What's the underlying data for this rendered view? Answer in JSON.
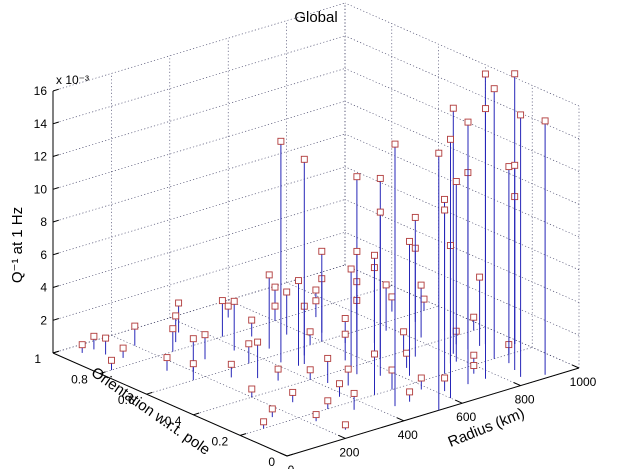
{
  "chart_data": {
    "type": "scatter",
    "subtype": "stem3",
    "title": "Global",
    "xlabel": "Radius (km)",
    "ylabel": "Orientation w.r.t. pole",
    "zlabel": "Q⁻¹ at 1 Hz",
    "z_multiplier": "x 10⁻³",
    "xlim": [
      0,
      1000
    ],
    "ylim": [
      0,
      1
    ],
    "zlim": [
      0,
      16
    ],
    "xticks": [
      "0",
      "200",
      "400",
      "600",
      "800",
      "1000"
    ],
    "yticks": [
      "0",
      "0.2",
      "0.4",
      "0.6",
      "0.8",
      "1"
    ],
    "zticks": [
      "2",
      "4",
      "6",
      "8",
      "10",
      "12",
      "14",
      "16"
    ],
    "grid": true,
    "stem_color": "#2626b8",
    "marker_color": "#b03a3a",
    "points": [
      [
        920,
        0.3,
        16.5
      ],
      [
        980,
        0.25,
        16.5
      ],
      [
        870,
        0.2,
        16.5
      ],
      [
        760,
        0.1,
        16.5
      ],
      [
        840,
        0.05,
        16.0
      ],
      [
        900,
        0.02,
        15.5
      ],
      [
        600,
        0.05,
        15.8
      ],
      [
        520,
        0.0,
        15.7
      ],
      [
        450,
        0.1,
        16.0
      ],
      [
        700,
        0.1,
        16.0
      ],
      [
        810,
        0.3,
        15.0
      ],
      [
        420,
        0.55,
        13.5
      ],
      [
        460,
        0.5,
        12.5
      ],
      [
        600,
        0.45,
        11.0
      ],
      [
        860,
        0.1,
        12.5
      ],
      [
        880,
        0.15,
        12.0
      ],
      [
        640,
        0.4,
        11.0
      ],
      [
        780,
        0.25,
        11.0
      ],
      [
        860,
        0.3,
        10.8
      ],
      [
        700,
        0.2,
        10.0
      ],
      [
        560,
        0.3,
        10.0
      ],
      [
        980,
        0.25,
        9.0
      ],
      [
        720,
        0.35,
        8.5
      ],
      [
        900,
        0.45,
        8.0
      ],
      [
        620,
        0.25,
        8.2
      ],
      [
        500,
        0.25,
        8.0
      ],
      [
        520,
        0.35,
        7.5
      ],
      [
        760,
        0.25,
        7.2
      ],
      [
        540,
        0.4,
        6.0
      ],
      [
        600,
        0.6,
        5.5
      ],
      [
        460,
        0.65,
        4.5
      ],
      [
        440,
        0.5,
        5.2
      ],
      [
        880,
        0.55,
        4.5
      ],
      [
        700,
        0.5,
        4.6
      ],
      [
        900,
        0.3,
        4.2
      ],
      [
        380,
        0.7,
        3.0
      ],
      [
        640,
        0.65,
        3.3
      ],
      [
        720,
        0.6,
        3.0
      ],
      [
        780,
        0.55,
        2.8
      ],
      [
        820,
        0.45,
        3.2
      ],
      [
        500,
        0.55,
        3.0
      ],
      [
        560,
        0.7,
        2.6
      ],
      [
        420,
        0.8,
        2.2
      ],
      [
        350,
        0.9,
        1.8
      ],
      [
        300,
        0.85,
        1.6
      ],
      [
        250,
        0.8,
        1.4
      ],
      [
        200,
        0.9,
        1.2
      ],
      [
        280,
        0.7,
        1.5
      ],
      [
        350,
        0.6,
        1.2
      ],
      [
        480,
        0.75,
        1.0
      ],
      [
        600,
        0.8,
        0.9
      ],
      [
        700,
        0.75,
        1.0
      ],
      [
        800,
        0.7,
        0.8
      ],
      [
        880,
        0.65,
        0.9
      ],
      [
        950,
        0.6,
        0.7
      ],
      [
        150,
        0.7,
        0.8
      ],
      [
        100,
        0.9,
        1.0
      ],
      [
        100,
        0.95,
        0.8
      ],
      [
        120,
        0.85,
        0.6
      ],
      [
        60,
        0.95,
        0.5
      ],
      [
        40,
        0.8,
        0.6
      ],
      [
        250,
        0.55,
        0.8
      ],
      [
        330,
        0.45,
        0.7
      ],
      [
        400,
        0.4,
        0.6
      ],
      [
        200,
        0.4,
        0.5
      ],
      [
        260,
        0.3,
        0.6
      ],
      [
        150,
        0.25,
        0.5
      ],
      [
        80,
        0.2,
        0.4
      ],
      [
        300,
        0.2,
        0.5
      ],
      [
        380,
        0.25,
        0.8
      ],
      [
        450,
        0.3,
        1.0
      ],
      [
        520,
        0.2,
        1.2
      ],
      [
        580,
        0.15,
        0.7
      ],
      [
        650,
        0.3,
        0.9
      ],
      [
        720,
        0.4,
        1.2
      ],
      [
        800,
        0.2,
        0.6
      ],
      [
        860,
        0.35,
        0.8
      ],
      [
        560,
        0.45,
        1.6
      ],
      [
        640,
        0.55,
        1.5
      ],
      [
        420,
        0.35,
        1.5
      ],
      [
        200,
        0.65,
        2.0
      ],
      [
        160,
        0.6,
        1.0
      ],
      [
        300,
        0.5,
        2.2
      ],
      [
        460,
        0.2,
        2.5
      ],
      [
        350,
        0.15,
        1.0
      ],
      [
        220,
        0.15,
        0.4
      ],
      [
        500,
        0.1,
        0.6
      ],
      [
        620,
        0.1,
        0.8
      ],
      [
        760,
        0.15,
        0.5
      ],
      [
        920,
        0.2,
        0.6
      ],
      [
        960,
        0.4,
        0.8
      ],
      [
        680,
        0.9,
        1.0
      ],
      [
        520,
        0.9,
        0.7
      ],
      [
        780,
        0.85,
        0.6
      ],
      [
        560,
        0.6,
        0.8
      ],
      [
        240,
        0.05,
        0.3
      ]
    ]
  }
}
